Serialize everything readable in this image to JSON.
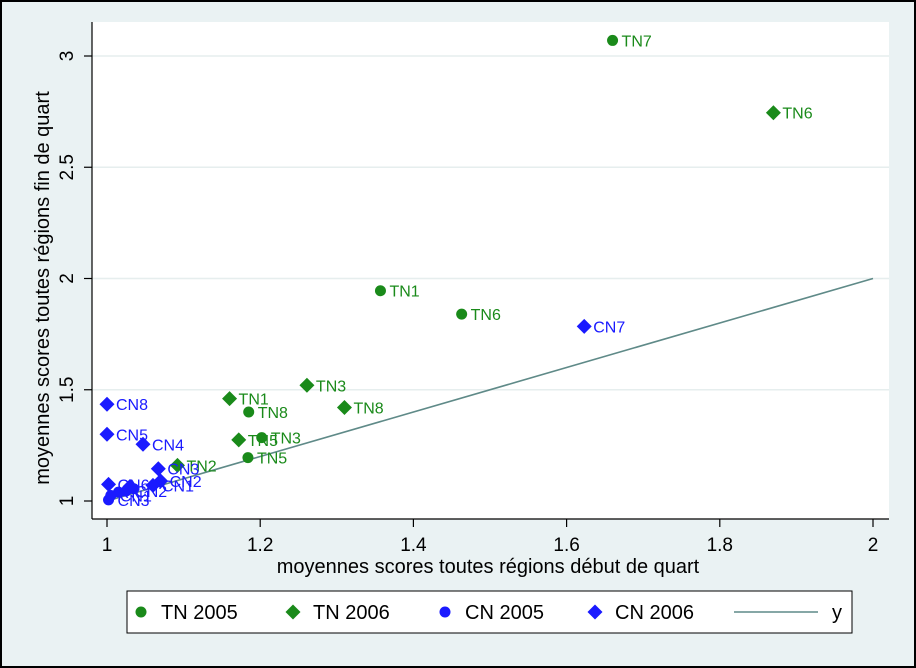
{
  "chart_data": {
    "type": "scatter",
    "xlabel": "moyennes scores toutes régions début de quart",
    "ylabel": "moyennes scores  toutes régions fin de quart",
    "xlim": [
      1,
      2
    ],
    "ylim": [
      1,
      3.07
    ],
    "x_ticks": [
      "1",
      "1.2",
      "1.4",
      "1.6",
      "1.8",
      "2"
    ],
    "y_ticks": [
      "1",
      "1.5",
      "2",
      "2.5",
      "3"
    ],
    "grid": true,
    "legend_position": "bottom",
    "colors": {
      "TN": "#1a8a1a",
      "CN": "#1a1aff",
      "line": "#5f8a88"
    },
    "series": [
      {
        "name": "TN 2005",
        "marker": "circle",
        "color": "#1a8a1a",
        "points": [
          {
            "label": "TN7",
            "x": 1.66,
            "y": 3.07
          },
          {
            "label": "TN1",
            "x": 1.357,
            "y": 1.945
          },
          {
            "label": "TN6",
            "x": 1.463,
            "y": 1.84
          },
          {
            "label": "TN8",
            "x": 1.185,
            "y": 1.4
          },
          {
            "label": "TN3",
            "x": 1.202,
            "y": 1.285
          },
          {
            "label": "TN5",
            "x": 1.184,
            "y": 1.195
          }
        ]
      },
      {
        "name": "TN 2006",
        "marker": "diamond",
        "color": "#1a8a1a",
        "points": [
          {
            "label": "TN6",
            "x": 1.87,
            "y": 2.745
          },
          {
            "label": "TN3",
            "x": 1.261,
            "y": 1.52
          },
          {
            "label": "TN8",
            "x": 1.31,
            "y": 1.42
          },
          {
            "label": "TN1",
            "x": 1.16,
            "y": 1.46
          },
          {
            "label": "TN5",
            "x": 1.172,
            "y": 1.275
          },
          {
            "label": "TN2",
            "x": 1.092,
            "y": 1.16
          }
        ]
      },
      {
        "name": "CN 2005",
        "marker": "circle",
        "color": "#1a1aff",
        "points": [
          {
            "label": "CN3",
            "x": 1.002,
            "y": 1.005
          },
          {
            "label": "CN1",
            "x": 1.005,
            "y": 1.025
          },
          {
            "label": "CN2",
            "x": 1.025,
            "y": 1.045
          },
          {
            "label": "",
            "x": 1.015,
            "y": 1.04
          },
          {
            "label": "",
            "x": 1.035,
            "y": 1.055
          }
        ]
      },
      {
        "name": "CN 2006",
        "marker": "diamond",
        "color": "#1a1aff",
        "points": [
          {
            "label": "CN7",
            "x": 1.623,
            "y": 1.785
          },
          {
            "label": "CN8",
            "x": 1.0,
            "y": 1.435
          },
          {
            "label": "CN5",
            "x": 1.0,
            "y": 1.3
          },
          {
            "label": "CN4",
            "x": 1.047,
            "y": 1.255
          },
          {
            "label": "CN3",
            "x": 1.067,
            "y": 1.145
          },
          {
            "label": "CN2",
            "x": 1.07,
            "y": 1.09
          },
          {
            "label": "CN1",
            "x": 1.06,
            "y": 1.07
          },
          {
            "label": "CN6",
            "x": 1.002,
            "y": 1.075
          },
          {
            "label": "",
            "x": 1.03,
            "y": 1.065
          }
        ]
      }
    ],
    "line": {
      "name": "y",
      "x": [
        1,
        2
      ],
      "y": [
        1,
        2
      ],
      "color": "#5f8a88"
    }
  }
}
